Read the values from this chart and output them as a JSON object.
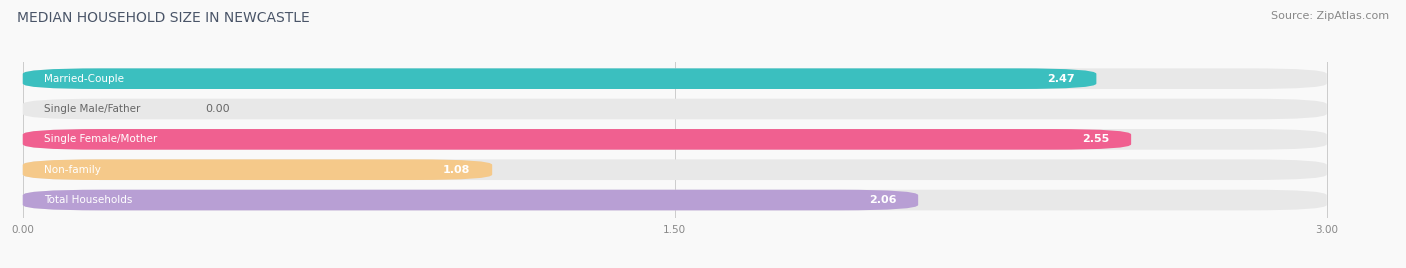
{
  "title": "MEDIAN HOUSEHOLD SIZE IN NEWCASTLE",
  "source": "Source: ZipAtlas.com",
  "categories": [
    "Married-Couple",
    "Single Male/Father",
    "Single Female/Mother",
    "Non-family",
    "Total Households"
  ],
  "values": [
    2.47,
    0.0,
    2.55,
    1.08,
    2.06
  ],
  "bar_colors": [
    "#3bbfbf",
    "#a8b8e8",
    "#f06090",
    "#f5c98a",
    "#b89fd4"
  ],
  "track_color": "#e8e8e8",
  "xlim": [
    0,
    3.0
  ],
  "xticks": [
    0.0,
    1.5,
    3.0
  ],
  "xtick_labels": [
    "0.00",
    "1.50",
    "3.00"
  ],
  "title_fontsize": 10,
  "source_fontsize": 8,
  "label_fontsize": 7.5,
  "value_fontsize": 8,
  "bar_height": 0.68,
  "bar_gap": 1.0,
  "background_color": "#f9f9f9"
}
